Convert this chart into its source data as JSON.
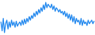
{
  "values": [
    -2.0,
    -4.5,
    -1.0,
    -5.0,
    -2.5,
    -1.5,
    -4.0,
    -2.0,
    -3.5,
    -1.5,
    -3.0,
    -2.0,
    -3.5,
    -1.8,
    -3.2,
    -2.5,
    -2.0,
    -3.0,
    -1.5,
    -2.8,
    -1.2,
    -2.5,
    -1.0,
    -2.0,
    -0.5,
    -1.5,
    -0.2,
    -1.0,
    0.5,
    -0.5,
    1.0,
    0.0,
    1.5,
    0.5,
    2.0,
    1.0,
    2.8,
    1.5,
    3.5,
    2.0,
    3.0,
    2.5,
    2.0,
    3.0,
    1.5,
    2.5,
    1.0,
    2.0,
    1.5,
    0.8,
    1.5,
    0.5,
    1.0,
    0.0,
    1.0,
    -0.5,
    0.5,
    -1.0,
    0.2,
    -1.5,
    0.0,
    -2.0,
    -0.5,
    -2.5,
    -1.0,
    -2.0,
    -1.5,
    -2.8,
    -1.0,
    -3.0,
    -1.5,
    -2.5,
    -2.0,
    -3.0,
    -1.5,
    -2.5,
    -2.0,
    -1.5,
    -2.5,
    -1.8
  ],
  "line_color": "#2288ee",
  "background_color": "#ffffff",
  "linewidth": 0.9
}
